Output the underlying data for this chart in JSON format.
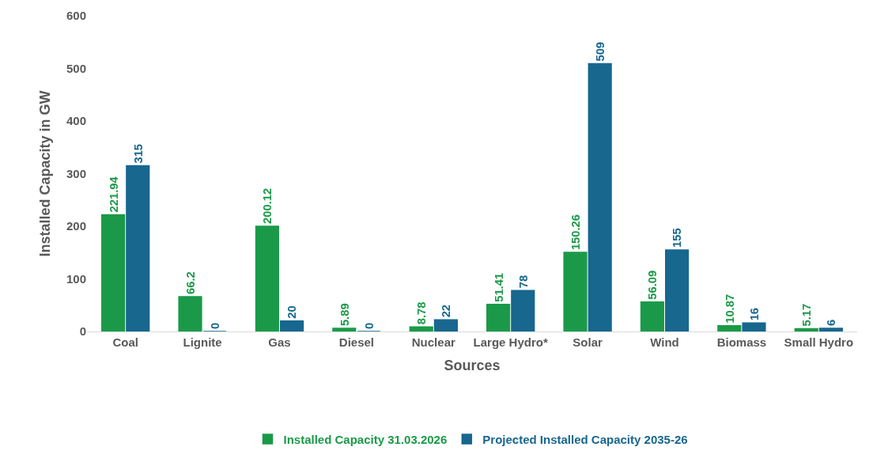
{
  "chart_data": {
    "type": "bar",
    "xlabel": "Sources",
    "ylabel": "Installed Capacity in GW",
    "categories": [
      "Coal",
      "Lignite",
      "Gas",
      "Diesel",
      "Nuclear",
      "Large Hydro*",
      "Solar",
      "Wind",
      "Biomass",
      "Small Hydro"
    ],
    "series": [
      {
        "name": "Installed Capacity 31.03.2026",
        "color": "#1a9a48",
        "values": [
          221.94,
          66.2,
          200.12,
          5.89,
          8.78,
          51.41,
          150.26,
          56.09,
          10.87,
          5.17
        ]
      },
      {
        "name": "Projected Installed Capacity 2035-26",
        "color": "#17678f",
        "values": [
          315,
          0,
          20,
          0,
          22,
          78,
          509,
          155,
          16,
          6
        ]
      }
    ],
    "ylim": [
      0,
      600
    ],
    "yticks": [
      0,
      100,
      200,
      300,
      400,
      500,
      600
    ],
    "legend": "bottom",
    "data_labels": true
  }
}
